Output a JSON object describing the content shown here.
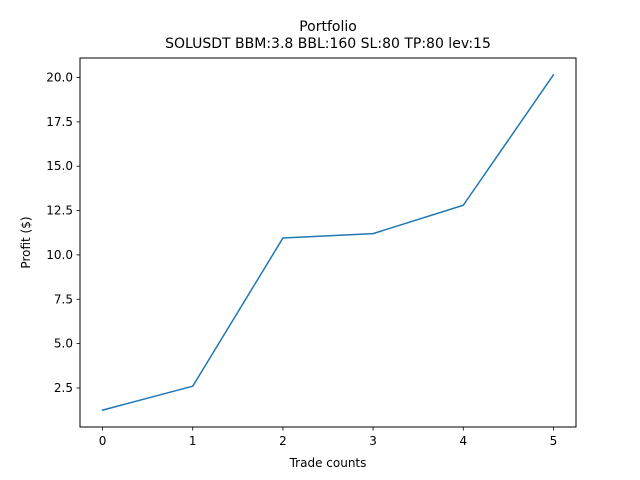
{
  "chart_data": {
    "type": "line",
    "title": "Portfolio",
    "subtitle": "SOLUSDT BBM:3.8 BBL:160 SL:80 TP:80 lev:15",
    "xlabel": "Trade counts",
    "ylabel": "Profit ($)",
    "xlim": [
      -0.25,
      5.25
    ],
    "ylim": [
      0.3,
      21.1
    ],
    "x_ticks": [
      0,
      1,
      2,
      3,
      4,
      5
    ],
    "y_ticks": [
      2.5,
      5.0,
      7.5,
      10.0,
      12.5,
      15.0,
      17.5,
      20.0
    ],
    "x_tick_labels": [
      "0",
      "1",
      "2",
      "3",
      "4",
      "5"
    ],
    "y_tick_labels": [
      "2.5",
      "5.0",
      "7.5",
      "10.0",
      "12.5",
      "15.0",
      "17.5",
      "20.0"
    ],
    "grid": false,
    "series": [
      {
        "x": [
          0,
          1,
          2,
          3,
          4,
          5
        ],
        "values": [
          1.25,
          2.6,
          10.95,
          11.2,
          12.8,
          20.15
        ],
        "color": "#1f77b4"
      }
    ]
  }
}
